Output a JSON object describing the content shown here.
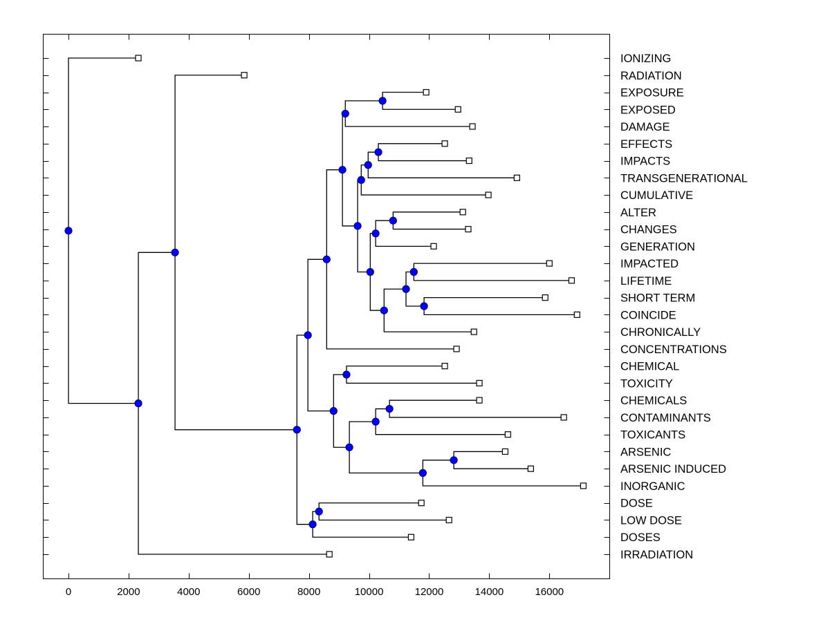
{
  "chart_data": {
    "type": "dendrogram",
    "title": "",
    "xlabel": "",
    "ylabel": "",
    "xlim": [
      -850,
      17980
    ],
    "x_ticks": [
      0,
      2000,
      4000,
      6000,
      8000,
      10000,
      12000,
      14000,
      16000
    ],
    "x_tick_labels": [
      "0",
      "2000",
      "4000",
      "6000",
      "8000",
      "10000",
      "12000",
      "14000",
      "16000"
    ],
    "grid": false,
    "legend": "none",
    "leaf_labels": [
      "IONIZING",
      "RADIATION",
      "EXPOSURE",
      "EXPOSED",
      "DAMAGE",
      "EFFECTS",
      "IMPACTS",
      "TRANSGENERATIONAL",
      "CUMULATIVE",
      "ALTER",
      "CHANGES",
      "GENERATION",
      "IMPACTED",
      "LIFETIME",
      "SHORT TERM",
      "COINCIDE",
      "CHRONICALLY",
      "CONCENTRATIONS",
      "CHEMICAL",
      "TOXICITY",
      "CHEMICALS",
      "CONTAMINANTS",
      "TOXICANTS",
      "ARSENIC",
      "ARSENIC INDUCED",
      "INORGANIC",
      "DOSE",
      "LOW DOSE",
      "DOSES",
      "IRRADIATION"
    ],
    "leaf_values": {
      "IONIZING": 2325,
      "RADIATION": 5847,
      "EXPOSURE": 11900,
      "EXPOSED": 12960,
      "DAMAGE": 13440,
      "EFFECTS": 12520,
      "IMPACTS": 13330,
      "TRANSGENERATIONAL": 14920,
      "CUMULATIVE": 13970,
      "ALTER": 13120,
      "CHANGES": 13300,
      "GENERATION": 12150,
      "IMPACTED": 16000,
      "LIFETIME": 16740,
      "SHORT TERM": 15860,
      "COINCIDE": 16920,
      "CHRONICALLY": 13490,
      "CONCENTRATIONS": 12910,
      "CHEMICAL": 12520,
      "TOXICITY": 13670,
      "CHEMICALS": 13670,
      "CONTAMINANTS": 16480,
      "TOXICANTS": 14620,
      "ARSENIC": 14530,
      "ARSENIC INDUCED": 15380,
      "INORGANIC": 17130,
      "DOSE": 11740,
      "LOW DOSE": 12660,
      "DOSES": 11400,
      "IRRADIATION": 8680
    },
    "tree": {
      "value": 0,
      "children": [
        {
          "leaf": "IONIZING"
        },
        {
          "value": 2325,
          "children": [
            {
              "value": 3545,
              "children": [
                {
                  "leaf": "RADIATION"
                },
                {
                  "value": 7600,
                  "children": [
                    {
                      "value": 7965,
                      "children": [
                        {
                          "value": 8590,
                          "children": [
                            {
                              "value": 9115,
                              "children": [
                                {
                                  "value": 9210,
                                  "children": [
                                    {
                                      "value": 10450,
                                      "children": [
                                        {
                                          "leaf": "EXPOSURE"
                                        },
                                        {
                                          "leaf": "EXPOSED"
                                        }
                                      ]
                                    },
                                    {
                                      "leaf": "DAMAGE"
                                    }
                                  ]
                                },
                                {
                                  "value": 9620,
                                  "children": [
                                    {
                                      "value": 9740,
                                      "children": [
                                        {
                                          "value": 9970,
                                          "children": [
                                            {
                                              "value": 10310,
                                              "children": [
                                                {
                                                  "leaf": "EFFECTS"
                                                },
                                                {
                                                  "leaf": "IMPACTS"
                                                }
                                              ]
                                            },
                                            {
                                              "leaf": "TRANSGENERATIONAL"
                                            }
                                          ]
                                        },
                                        {
                                          "leaf": "CUMULATIVE"
                                        }
                                      ]
                                    },
                                    {
                                      "value": 10040,
                                      "children": [
                                        {
                                          "value": 10220,
                                          "children": [
                                            {
                                              "value": 10800,
                                              "children": [
                                                {
                                                  "leaf": "ALTER"
                                                },
                                                {
                                                  "leaf": "CHANGES"
                                                }
                                              ]
                                            },
                                            {
                                              "leaf": "GENERATION"
                                            }
                                          ]
                                        },
                                        {
                                          "value": 10500,
                                          "children": [
                                            {
                                              "value": 11230,
                                              "children": [
                                                {
                                                  "value": 11490,
                                                  "children": [
                                                    {
                                                      "leaf": "IMPACTED"
                                                    },
                                                    {
                                                      "leaf": "LIFETIME"
                                                    }
                                                  ]
                                                },
                                                {
                                                  "value": 11830,
                                                  "children": [
                                                    {
                                                      "leaf": "SHORT TERM"
                                                    },
                                                    {
                                                      "leaf": "COINCIDE"
                                                    }
                                                  ]
                                                }
                                              ]
                                            },
                                            {
                                              "leaf": "CHRONICALLY"
                                            }
                                          ]
                                        }
                                      ]
                                    }
                                  ]
                                }
                              ]
                            },
                            {
                              "leaf": "CONCENTRATIONS"
                            }
                          ]
                        },
                        {
                          "value": 8820,
                          "children": [
                            {
                              "value": 9250,
                              "children": [
                                {
                                  "leaf": "CHEMICAL"
                                },
                                {
                                  "leaf": "TOXICITY"
                                }
                              ]
                            },
                            {
                              "value": 9345,
                              "children": [
                                {
                                  "value": 10220,
                                  "children": [
                                    {
                                      "value": 10680,
                                      "children": [
                                        {
                                          "leaf": "CHEMICALS"
                                        },
                                        {
                                          "leaf": "CONTAMINANTS"
                                        }
                                      ]
                                    },
                                    {
                                      "leaf": "TOXICANTS"
                                    }
                                  ]
                                },
                                {
                                  "value": 11790,
                                  "children": [
                                    {
                                      "value": 12820,
                                      "children": [
                                        {
                                          "leaf": "ARSENIC"
                                        },
                                        {
                                          "leaf": "ARSENIC INDUCED"
                                        }
                                      ]
                                    },
                                    {
                                      "leaf": "INORGANIC"
                                    }
                                  ]
                                }
                              ]
                            }
                          ]
                        }
                      ]
                    },
                    {
                      "value": 8125,
                      "children": [
                        {
                          "value": 8335,
                          "children": [
                            {
                              "leaf": "DOSE"
                            },
                            {
                              "leaf": "LOW DOSE"
                            }
                          ]
                        },
                        {
                          "leaf": "DOSES"
                        }
                      ]
                    }
                  ]
                }
              ]
            },
            {
              "leaf": "IRRADIATION"
            }
          ]
        }
      ]
    },
    "colors": {
      "internal_node": "#0000ff",
      "leaf_marker_fill": "#ffffff",
      "line": "#000000"
    }
  }
}
